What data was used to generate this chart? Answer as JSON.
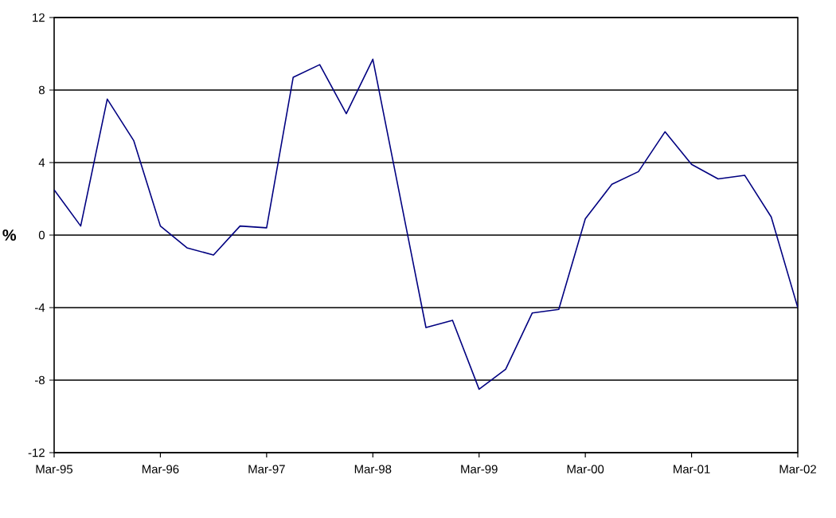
{
  "chart_data": {
    "type": "line",
    "ylabel": "%",
    "categories": [
      "Mar-95",
      null,
      null,
      null,
      "Mar-96",
      null,
      null,
      null,
      "Mar-97",
      null,
      null,
      null,
      "Mar-98",
      null,
      null,
      null,
      "Mar-99",
      null,
      null,
      null,
      "Mar-00",
      null,
      null,
      null,
      "Mar-01",
      null,
      null,
      null,
      "Mar-02"
    ],
    "series": [
      {
        "color": "#000080",
        "values": [
          2.5,
          0.5,
          7.5,
          5.2,
          0.5,
          -0.7,
          -1.1,
          0.5,
          0.4,
          8.7,
          9.4,
          6.7,
          9.7,
          2.3,
          -5.1,
          -4.7,
          -8.5,
          -7.4,
          -4.3,
          -4.1,
          0.9,
          2.8,
          3.5,
          5.7,
          3.9,
          3.1,
          3.3,
          1.0,
          -4.0
        ]
      }
    ],
    "ylim": [
      -12,
      12
    ],
    "yticks": [
      -12,
      -8,
      -4,
      0,
      4,
      8,
      12
    ],
    "grid": "y",
    "marker": "none",
    "line_style": "solid"
  }
}
